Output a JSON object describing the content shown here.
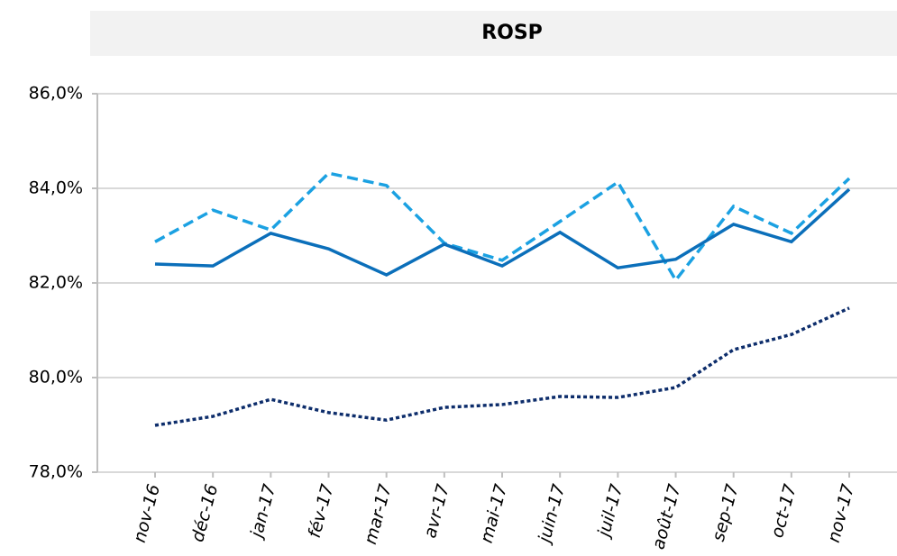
{
  "chart_data": {
    "type": "line",
    "title": "ROSP",
    "categories": [
      "nov-16",
      "déc-16",
      "jan-17",
      "fév-17",
      "mar-17",
      "avr-17",
      "mai-17",
      "juin-17",
      "juil-17",
      "août-17",
      "sep-17",
      "oct-17",
      "nov-17"
    ],
    "series": [
      {
        "color": "#1ba1e2",
        "line_style": "dashed",
        "values": [
          82.87,
          83.54,
          83.12,
          84.32,
          84.06,
          82.84,
          82.48,
          83.3,
          84.13,
          82.06,
          83.62,
          83.05,
          84.21
        ]
      },
      {
        "color": "#0b6fba",
        "line_style": "solid",
        "values": [
          82.4,
          82.36,
          83.05,
          82.72,
          82.17,
          82.82,
          82.36,
          83.07,
          82.32,
          82.5,
          83.24,
          82.87,
          83.98
        ]
      },
      {
        "color": "#0d2d6b",
        "line_style": "dotted",
        "values": [
          78.99,
          79.18,
          79.54,
          79.26,
          79.1,
          79.37,
          79.43,
          79.6,
          79.58,
          79.79,
          80.59,
          80.91,
          81.47
        ]
      }
    ],
    "ylim": [
      78,
      86
    ],
    "yticks": [
      {
        "value": 78,
        "label": "78,0%"
      },
      {
        "value": 80,
        "label": "80,0%"
      },
      {
        "value": 82,
        "label": "82,0%"
      },
      {
        "value": 84,
        "label": "84,0%"
      },
      {
        "value": 86,
        "label": "86,0%"
      }
    ],
    "grid": true
  }
}
